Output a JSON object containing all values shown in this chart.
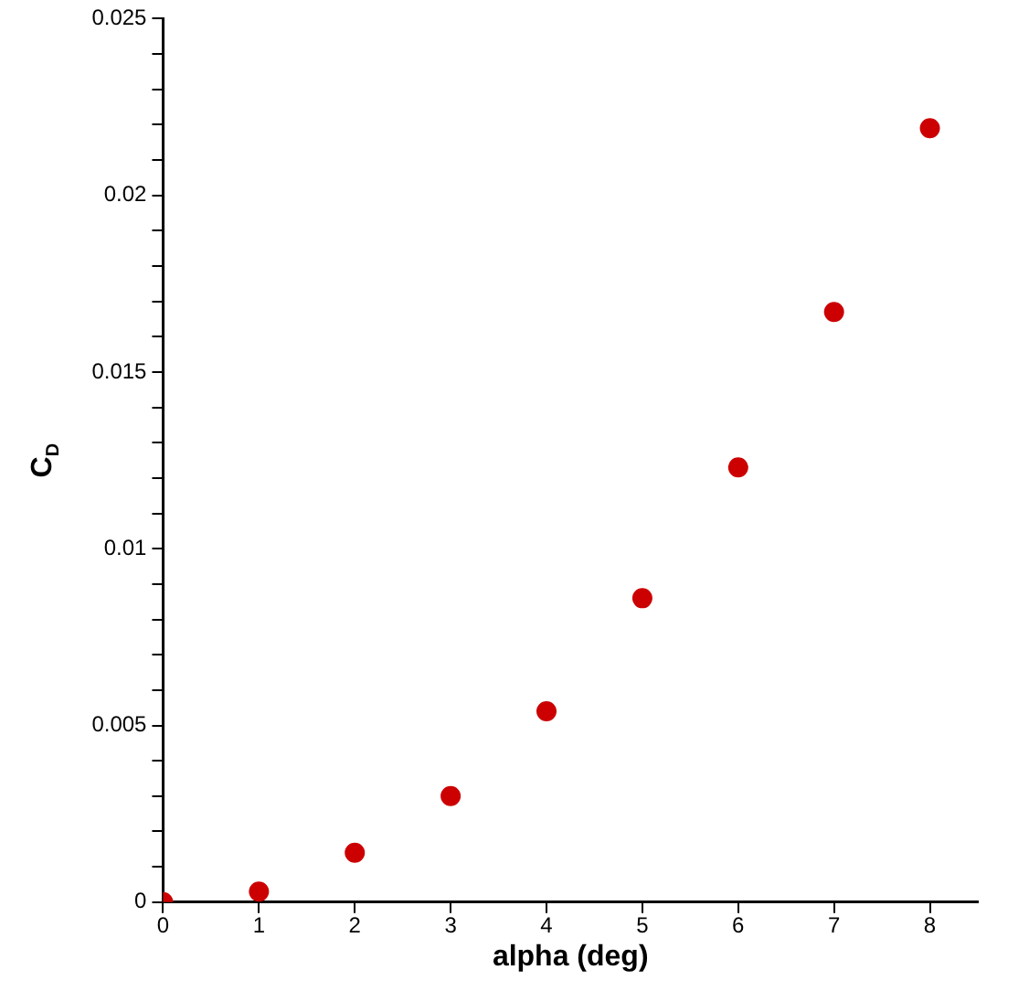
{
  "chart_data": {
    "type": "scatter",
    "xlabel": "alpha (deg)",
    "ylabel": "C$_{D}$",
    "x": [
      0,
      1,
      2,
      3,
      4,
      5,
      6,
      7,
      8
    ],
    "series": [
      {
        "color": "#cc0000",
        "values": [
          0,
          0.0003,
          0.0014,
          0.003,
          0.0054,
          0.0086,
          0.0123,
          0.0167,
          0.0219
        ]
      }
    ],
    "xlim": [
      0,
      8.5
    ],
    "xticks": [
      0,
      1,
      2,
      3,
      4,
      5,
      6,
      7,
      8
    ],
    "ylim": [
      0,
      0.025
    ],
    "yticks": [
      0,
      {
        "value": 0.001,
        "label": null
      },
      {
        "value": 0.002,
        "label": null
      },
      {
        "value": 0.003,
        "label": null
      },
      {
        "value": 0.004,
        "label": null
      },
      0.005,
      {
        "value": 0.006,
        "label": null
      },
      {
        "value": 0.007,
        "label": null
      },
      {
        "value": 0.008,
        "label": null
      },
      {
        "value": 0.009,
        "label": null
      },
      0.01,
      {
        "value": 0.011,
        "label": null
      },
      {
        "value": 0.012,
        "label": null
      },
      {
        "value": 0.013,
        "label": null
      },
      {
        "value": 0.014,
        "label": null
      },
      0.015,
      {
        "value": 0.016,
        "label": null
      },
      {
        "value": 0.017,
        "label": null
      },
      {
        "value": 0.018,
        "label": null
      },
      {
        "value": 0.019,
        "label": null
      },
      0.02,
      {
        "value": 0.021,
        "label": null
      },
      {
        "value": 0.022,
        "label": null
      },
      {
        "value": 0.023,
        "label": null
      },
      {
        "value": 0.024,
        "label": null
      },
      0.025
    ],
    "grid": false,
    "legend": false,
    "marker": "circle"
  }
}
